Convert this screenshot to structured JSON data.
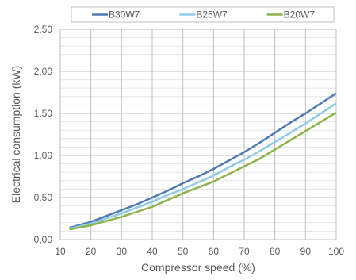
{
  "chart_data": {
    "type": "line",
    "title": "",
    "xlabel": "Compressor speed (%)",
    "ylabel": "Electrical consumption (kW)",
    "xlim": [
      10,
      100
    ],
    "ylim": [
      0,
      2.5
    ],
    "x_ticks": [
      "10",
      "20",
      "30",
      "40",
      "50",
      "60",
      "70",
      "80",
      "90",
      "100"
    ],
    "y_ticks": [
      "0,00",
      "0,50",
      "1,00",
      "1,50",
      "2,00",
      "2,50"
    ],
    "grid": true,
    "minor_grid": true,
    "legend_position": "top",
    "x": [
      13,
      20,
      25,
      30,
      35,
      40,
      45,
      50,
      55,
      60,
      65,
      70,
      75,
      80,
      85,
      90,
      95,
      100
    ],
    "series": [
      {
        "name": "B30W7",
        "color": "#4f7bb4",
        "values": [
          0.14,
          0.21,
          0.28,
          0.35,
          0.42,
          0.5,
          0.58,
          0.67,
          0.75,
          0.84,
          0.94,
          1.04,
          1.15,
          1.27,
          1.39,
          1.5,
          1.62,
          1.74
        ]
      },
      {
        "name": "B25W7",
        "color": "#8fcbe6",
        "values": [
          0.13,
          0.19,
          0.25,
          0.31,
          0.38,
          0.45,
          0.53,
          0.6,
          0.68,
          0.76,
          0.86,
          0.95,
          1.05,
          1.16,
          1.27,
          1.38,
          1.5,
          1.62
        ]
      },
      {
        "name": "B20W7",
        "color": "#8db44c",
        "values": [
          0.12,
          0.17,
          0.22,
          0.27,
          0.33,
          0.39,
          0.47,
          0.55,
          0.62,
          0.69,
          0.78,
          0.87,
          0.96,
          1.07,
          1.18,
          1.29,
          1.4,
          1.51
        ]
      }
    ]
  }
}
